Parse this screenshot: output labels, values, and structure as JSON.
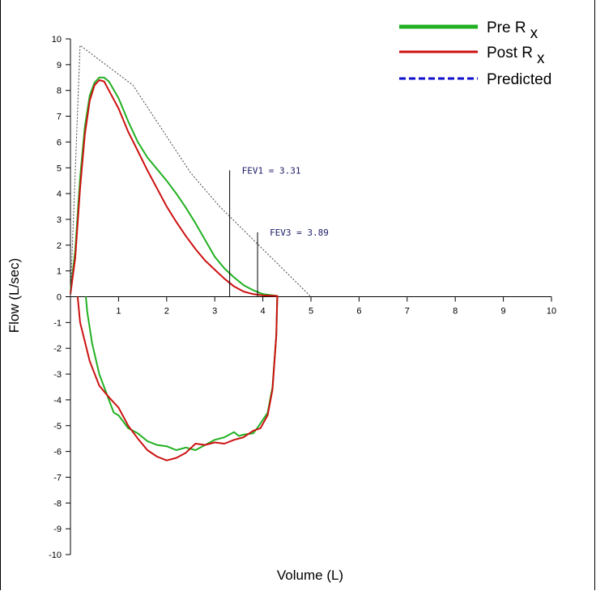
{
  "chart_data": {
    "type": "line",
    "xlabel": "Volume (L)",
    "ylabel": "Flow  (L/sec)",
    "xlim": [
      0,
      10
    ],
    "ylim": [
      -10,
      10
    ],
    "x_ticks": [
      1,
      2,
      3,
      4,
      5,
      6,
      7,
      8,
      9,
      10
    ],
    "y_ticks": [
      10,
      9,
      8,
      7,
      6,
      5,
      4,
      3,
      2,
      1,
      0,
      -1,
      -2,
      -3,
      -4,
      -5,
      -6,
      -7,
      -8,
      -9,
      -10
    ],
    "grid": false,
    "legend_position": "top-right",
    "legend": [
      {
        "label": "Pre R",
        "subscript": "x",
        "color": "#22b022",
        "style": "solid"
      },
      {
        "label": "Post R",
        "subscript": "x",
        "color": "#cc1111",
        "style": "solid"
      },
      {
        "label": "Predicted",
        "subscript": "",
        "color": "#1010cc",
        "style": "dashed"
      }
    ],
    "series": [
      {
        "name": "Pre R x",
        "color": "#22b022",
        "points": [
          [
            0,
            0.2
          ],
          [
            0.1,
            1.8
          ],
          [
            0.2,
            4.6
          ],
          [
            0.3,
            6.6
          ],
          [
            0.4,
            7.8
          ],
          [
            0.5,
            8.3
          ],
          [
            0.6,
            8.5
          ],
          [
            0.7,
            8.5
          ],
          [
            0.8,
            8.35
          ],
          [
            1.0,
            7.7
          ],
          [
            1.2,
            6.8
          ],
          [
            1.4,
            6.0
          ],
          [
            1.6,
            5.4
          ],
          [
            1.8,
            4.95
          ],
          [
            2.0,
            4.5
          ],
          [
            2.2,
            4.0
          ],
          [
            2.4,
            3.45
          ],
          [
            2.6,
            2.85
          ],
          [
            2.8,
            2.2
          ],
          [
            3.0,
            1.55
          ],
          [
            3.2,
            1.1
          ],
          [
            3.4,
            0.75
          ],
          [
            3.6,
            0.45
          ],
          [
            3.8,
            0.25
          ],
          [
            4.0,
            0.1
          ],
          [
            4.3,
            0.03
          ],
          [
            4.3,
            0
          ],
          [
            4.28,
            -1.5
          ],
          [
            4.2,
            -3.5
          ],
          [
            4.1,
            -4.5
          ],
          [
            3.9,
            -5.05
          ],
          [
            3.8,
            -5.3
          ],
          [
            3.6,
            -5.35
          ],
          [
            3.5,
            -5.4
          ],
          [
            3.4,
            -5.25
          ],
          [
            3.2,
            -5.45
          ],
          [
            3.0,
            -5.55
          ],
          [
            2.8,
            -5.75
          ],
          [
            2.6,
            -5.95
          ],
          [
            2.4,
            -5.85
          ],
          [
            2.2,
            -5.95
          ],
          [
            2.0,
            -5.8
          ],
          [
            1.8,
            -5.75
          ],
          [
            1.6,
            -5.6
          ],
          [
            1.4,
            -5.3
          ],
          [
            1.2,
            -5.1
          ],
          [
            1.0,
            -4.6
          ],
          [
            0.9,
            -4.5
          ],
          [
            0.8,
            -4.0
          ],
          [
            0.6,
            -3.0
          ],
          [
            0.45,
            -1.8
          ],
          [
            0.35,
            -0.6
          ],
          [
            0.32,
            0
          ]
        ]
      },
      {
        "name": "Post R x",
        "color": "#cc1111",
        "points": [
          [
            0,
            0.1
          ],
          [
            0.1,
            1.5
          ],
          [
            0.2,
            4.2
          ],
          [
            0.3,
            6.3
          ],
          [
            0.4,
            7.6
          ],
          [
            0.5,
            8.2
          ],
          [
            0.6,
            8.4
          ],
          [
            0.7,
            8.35
          ],
          [
            0.8,
            8.0
          ],
          [
            1.0,
            7.3
          ],
          [
            1.2,
            6.4
          ],
          [
            1.4,
            5.65
          ],
          [
            1.6,
            4.9
          ],
          [
            1.8,
            4.2
          ],
          [
            2.0,
            3.5
          ],
          [
            2.2,
            2.9
          ],
          [
            2.4,
            2.35
          ],
          [
            2.6,
            1.85
          ],
          [
            2.8,
            1.4
          ],
          [
            3.0,
            1.05
          ],
          [
            3.2,
            0.7
          ],
          [
            3.4,
            0.4
          ],
          [
            3.6,
            0.2
          ],
          [
            3.8,
            0.1
          ],
          [
            4.0,
            0.05
          ],
          [
            4.3,
            0.03
          ],
          [
            4.3,
            0
          ],
          [
            4.28,
            -1.5
          ],
          [
            4.2,
            -3.6
          ],
          [
            4.1,
            -4.6
          ],
          [
            3.95,
            -5.1
          ],
          [
            3.8,
            -5.2
          ],
          [
            3.6,
            -5.45
          ],
          [
            3.4,
            -5.55
          ],
          [
            3.2,
            -5.7
          ],
          [
            3.0,
            -5.65
          ],
          [
            2.8,
            -5.75
          ],
          [
            2.6,
            -5.7
          ],
          [
            2.4,
            -6.05
          ],
          [
            2.2,
            -6.25
          ],
          [
            2.0,
            -6.35
          ],
          [
            1.8,
            -6.2
          ],
          [
            1.6,
            -5.95
          ],
          [
            1.4,
            -5.5
          ],
          [
            1.2,
            -5.0
          ],
          [
            1.0,
            -4.3
          ],
          [
            0.8,
            -3.9
          ],
          [
            0.6,
            -3.45
          ],
          [
            0.4,
            -2.5
          ],
          [
            0.2,
            -1.0
          ],
          [
            0.15,
            0
          ]
        ]
      },
      {
        "name": "Predicted",
        "color": "#444444",
        "style": "dotted",
        "points": [
          [
            0,
            0
          ],
          [
            0.2,
            9.75
          ],
          [
            1.3,
            8.2
          ],
          [
            2.5,
            4.8
          ],
          [
            3.1,
            3.5
          ],
          [
            5.0,
            0
          ]
        ]
      }
    ],
    "annotations": [
      {
        "label": "FEV1 = 3.31",
        "x": 3.31,
        "y_top": 4.9
      },
      {
        "label": "FEV3 = 3.89",
        "x": 3.89,
        "y_top": 2.5
      }
    ]
  }
}
